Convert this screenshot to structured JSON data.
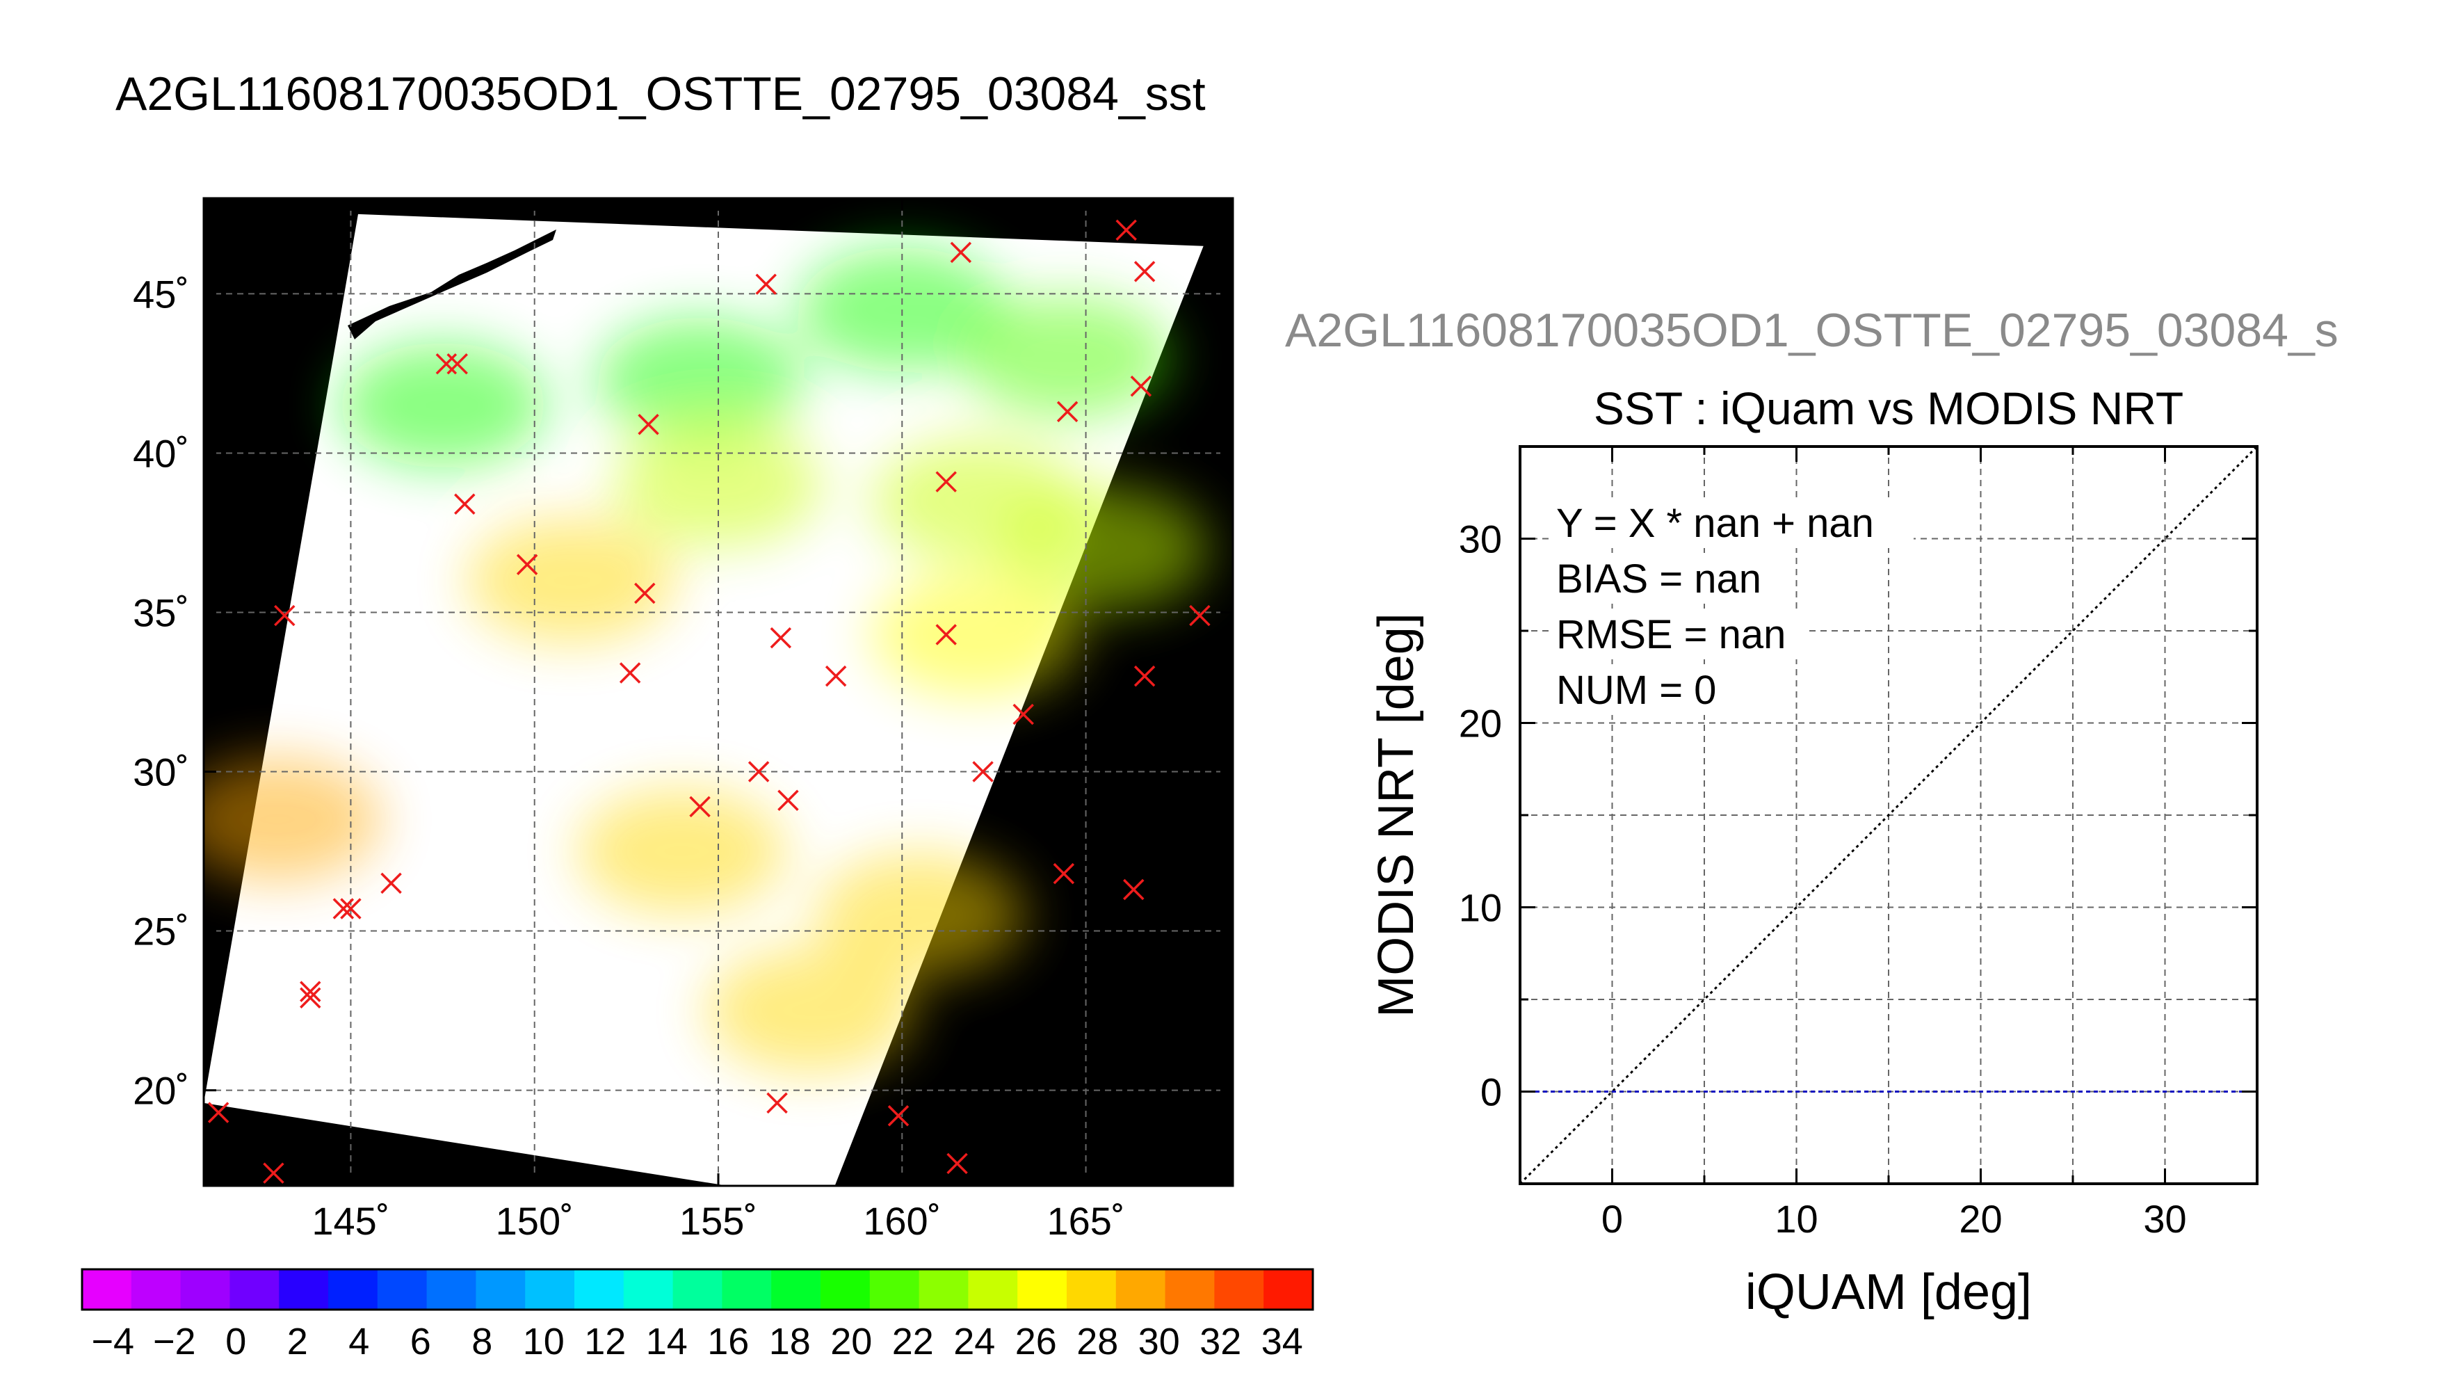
{
  "figure": {
    "title": "A2GL11608170035OD1_OSTTE_02795_03084_sst",
    "overlay_title": "A2GL11608170035OD1_OSTTE_02795_03084_s"
  },
  "colors": {
    "map_background": "#000000",
    "swath": "#ffffff",
    "marker": "#ee1c1c",
    "grid": "#666666",
    "zero_line": "#1010c0"
  },
  "chart_data": [
    {
      "type": "heatmap",
      "xlim": [
        141,
        169
      ],
      "ylim": [
        17,
        48
      ],
      "x_ticks": [
        145,
        150,
        155,
        160,
        165
      ],
      "y_ticks": [
        20,
        25,
        30,
        35,
        40,
        45
      ],
      "x_tick_labels": [
        "145˚",
        "150˚",
        "155˚",
        "160˚",
        "165˚"
      ],
      "y_tick_labels": [
        "20˚",
        "25˚",
        "30˚",
        "35˚",
        "40˚",
        "45˚"
      ],
      "grid": true,
      "swath_corners_lonlat": [
        [
          145.2,
          47.5
        ],
        [
          168.2,
          46.5
        ],
        [
          158.0,
          16.5
        ],
        [
          141.0,
          19.6
        ]
      ],
      "sst_regions": [
        {
          "lon": 147.5,
          "lat": 41.5,
          "sst": 20
        },
        {
          "lon": 154.5,
          "lat": 42.3,
          "sst": 19
        },
        {
          "lon": 160.0,
          "lat": 44.5,
          "sst": 20
        },
        {
          "lon": 164.5,
          "lat": 43.0,
          "sst": 21
        },
        {
          "lon": 162.0,
          "lat": 38.5,
          "sst": 24
        },
        {
          "lon": 165.5,
          "lat": 37.0,
          "sst": 25
        },
        {
          "lon": 155.0,
          "lat": 39.0,
          "sst": 25
        },
        {
          "lon": 162.0,
          "lat": 34.3,
          "sst": 26
        },
        {
          "lon": 151.0,
          "lat": 36.0,
          "sst": 27
        },
        {
          "lon": 143.0,
          "lat": 28.5,
          "sst": 29
        },
        {
          "lon": 154.0,
          "lat": 27.5,
          "sst": 28
        },
        {
          "lon": 157.5,
          "lat": 22.5,
          "sst": 28
        },
        {
          "lon": 160.5,
          "lat": 25.5,
          "sst": 27
        }
      ],
      "markers": {
        "symbol": "x",
        "points": [
          [
            147.6,
            42.8
          ],
          [
            147.9,
            42.8
          ],
          [
            153.1,
            40.9
          ],
          [
            148.1,
            38.4
          ],
          [
            149.8,
            36.5
          ],
          [
            153.0,
            35.6
          ],
          [
            143.2,
            34.9
          ],
          [
            156.7,
            34.2
          ],
          [
            152.6,
            33.1
          ],
          [
            156.3,
            45.3
          ],
          [
            161.6,
            46.3
          ],
          [
            166.1,
            47.0
          ],
          [
            166.6,
            45.7
          ],
          [
            166.5,
            42.1
          ],
          [
            164.5,
            41.3
          ],
          [
            161.2,
            39.1
          ],
          [
            161.2,
            34.3
          ],
          [
            168.1,
            34.9
          ],
          [
            166.6,
            33.0
          ],
          [
            158.2,
            33.0
          ],
          [
            163.3,
            31.8
          ],
          [
            162.2,
            30.0
          ],
          [
            156.1,
            30.0
          ],
          [
            156.9,
            29.1
          ],
          [
            154.5,
            28.9
          ],
          [
            146.1,
            26.5
          ],
          [
            144.8,
            25.7
          ],
          [
            145.0,
            25.7
          ],
          [
            164.4,
            26.8
          ],
          [
            166.3,
            26.3
          ],
          [
            143.9,
            23.1
          ],
          [
            143.9,
            22.9
          ],
          [
            141.4,
            19.3
          ],
          [
            142.9,
            17.4
          ],
          [
            156.6,
            19.6
          ],
          [
            159.9,
            19.2
          ],
          [
            161.5,
            17.7
          ]
        ]
      }
    },
    {
      "type": "scatter",
      "title": "SST : iQuam vs MODIS NRT",
      "xlabel": "iQUAM [deg]",
      "ylabel": "MODIS NRT [deg]",
      "xlim": [
        -5,
        35
      ],
      "ylim": [
        -5,
        35
      ],
      "x_ticks": [
        0,
        10,
        20,
        30
      ],
      "y_ticks": [
        0,
        10,
        20,
        30
      ],
      "grid": true,
      "stats": {
        "fit": "Y = X * nan + nan",
        "bias": "BIAS = nan",
        "rmse": "RMSE = nan",
        "num": "NUM = 0"
      },
      "points": [],
      "reference_lines": [
        {
          "kind": "identity",
          "from": [
            -5,
            -5
          ],
          "to": [
            35,
            35
          ],
          "style": "dotted",
          "color": "#000000"
        },
        {
          "kind": "horizontal",
          "y": 0,
          "style": "dashed",
          "color": "#1010c0"
        }
      ]
    },
    {
      "type": "heatmap",
      "role": "colorbar",
      "range": [
        -5,
        35
      ],
      "tick_labels": [
        "−4",
        "−2",
        "0",
        "2",
        "4",
        "6",
        "8",
        "10",
        "12",
        "14",
        "16",
        "18",
        "20",
        "22",
        "24",
        "26",
        "28",
        "30",
        "32",
        "34"
      ],
      "colors": [
        "#e600ff",
        "#be00ff",
        "#9e00ff",
        "#7000ff",
        "#2800ff",
        "#0020ff",
        "#0048ff",
        "#0070ff",
        "#0098ff",
        "#00c0ff",
        "#00e8ff",
        "#00ffd8",
        "#00ff9c",
        "#00ff64",
        "#00ff2c",
        "#18ff00",
        "#50ff00",
        "#8cff00",
        "#c8ff00",
        "#ffff00",
        "#ffd800",
        "#ffa800",
        "#ff7800",
        "#ff4800",
        "#ff1a00"
      ]
    }
  ]
}
